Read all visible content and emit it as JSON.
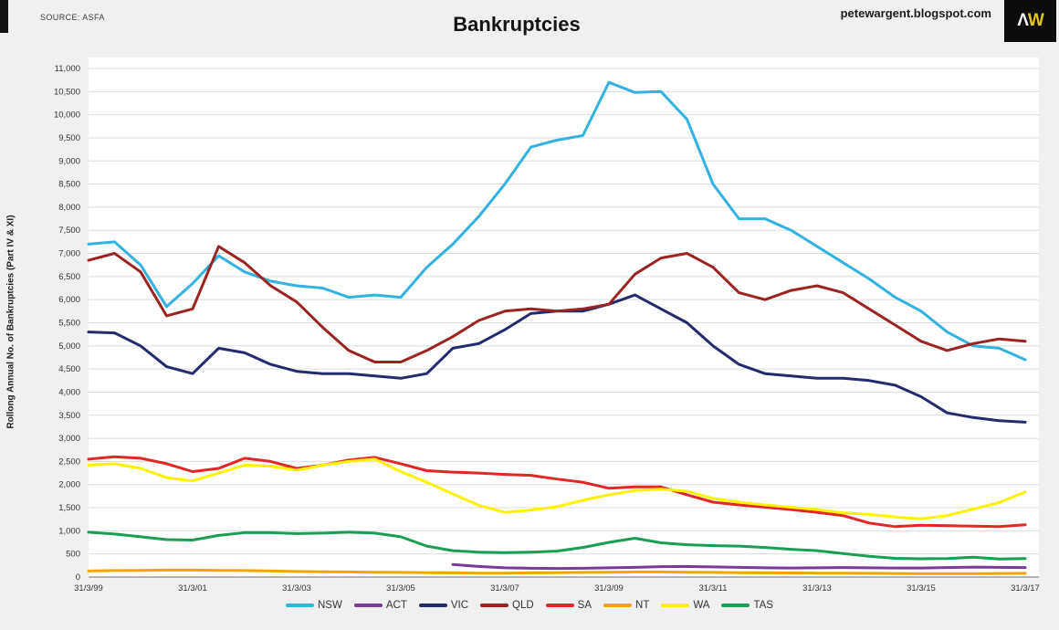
{
  "header": {
    "source": "SOURCE: ASFA",
    "title": "Bankruptcies",
    "site": "petewargent.blogspot.com",
    "logo": {
      "part1": "Λ",
      "part2": "W"
    }
  },
  "y_axis": {
    "label": "Rollong Annual No. of Bankruptcies (Part IV & XI)",
    "ticks": [
      "0",
      "500",
      "1,000",
      "1,500",
      "2,000",
      "2,500",
      "3,000",
      "3,500",
      "4,000",
      "4,500",
      "5,000",
      "5,500",
      "6,000",
      "6,500",
      "7,000",
      "7,500",
      "8,000",
      "8,500",
      "9,000",
      "9,500",
      "10,000",
      "10,500",
      "11,000"
    ]
  },
  "x_axis": {
    "ticks": [
      {
        "label": "31/3/99",
        "year": 1999.25
      },
      {
        "label": "31/3/01",
        "year": 2001.25
      },
      {
        "label": "31/3/03",
        "year": 2003.25
      },
      {
        "label": "31/3/05",
        "year": 2005.25
      },
      {
        "label": "31/3/07",
        "year": 2007.25
      },
      {
        "label": "31/3/09",
        "year": 2009.25
      },
      {
        "label": "31/3/11",
        "year": 2011.25
      },
      {
        "label": "31/3/13",
        "year": 2013.25
      },
      {
        "label": "31/3/15",
        "year": 2015.25
      },
      {
        "label": "31/3/17",
        "year": 2017.25
      }
    ]
  },
  "legend": [
    {
      "label": "NSW",
      "color": "#33b1e1"
    },
    {
      "label": "ACT",
      "color": "#7a3b9b"
    },
    {
      "label": "VIC",
      "color": "#232a6d"
    },
    {
      "label": "QLD",
      "color": "#9b2423"
    },
    {
      "label": "SA",
      "color": "#e32726"
    },
    {
      "label": "NT",
      "color": "#f0a500"
    },
    {
      "label": "WA",
      "color": "#fff200"
    },
    {
      "label": "TAS",
      "color": "#1a9e55"
    }
  ],
  "chart_data": {
    "type": "line",
    "title": "Bankruptcies",
    "ylabel": "Rollong Annual No. of Bankruptcies (Part IV & XI)",
    "xlabel": "",
    "ylim": [
      0,
      11000
    ],
    "y_tick_step": 500,
    "grid": "horizontal",
    "legend_position": "bottom",
    "x_start": 1999.25,
    "x_step": 0.5,
    "x_tick_labels": [
      "31/3/99",
      "31/3/01",
      "31/3/03",
      "31/3/05",
      "31/3/07",
      "31/3/09",
      "31/3/11",
      "31/3/13",
      "31/3/15",
      "31/3/17"
    ],
    "series": [
      {
        "name": "NSW",
        "color": "#33b1e1",
        "values": [
          7200,
          7250,
          6750,
          5850,
          6350,
          6950,
          6600,
          6400,
          6300,
          6250,
          6050,
          6100,
          6050,
          6700,
          7200,
          7800,
          8500,
          9300,
          9450,
          9550,
          10700,
          10480,
          10500,
          9900,
          8500,
          7750,
          7750,
          7500,
          7150,
          6800,
          6450,
          6050,
          5750,
          5300,
          5000,
          4950,
          4700
        ]
      },
      {
        "name": "ACT",
        "color": "#7a3b9b",
        "values": [
          null,
          null,
          null,
          null,
          null,
          null,
          null,
          null,
          null,
          null,
          null,
          null,
          null,
          null,
          270,
          230,
          200,
          190,
          185,
          190,
          200,
          210,
          225,
          230,
          220,
          210,
          200,
          195,
          200,
          205,
          200,
          195,
          195,
          205,
          215,
          210,
          205
        ]
      },
      {
        "name": "VIC",
        "color": "#232a6d",
        "values": [
          5300,
          5280,
          5000,
          4550,
          4400,
          4950,
          4850,
          4600,
          4450,
          4400,
          4400,
          4350,
          4300,
          4400,
          4950,
          5050,
          5350,
          5700,
          5750,
          5750,
          5900,
          6100,
          5800,
          5500,
          5000,
          4600,
          4400,
          4350,
          4300,
          4300,
          4250,
          4150,
          3900,
          3550,
          3450,
          3380,
          3350
        ]
      },
      {
        "name": "QLD",
        "color": "#9b2423",
        "values": [
          6850,
          7000,
          6600,
          5650,
          5800,
          7150,
          6800,
          6300,
          5950,
          5400,
          4900,
          4650,
          4650,
          4900,
          5200,
          5550,
          5750,
          5800,
          5750,
          5800,
          5900,
          6550,
          6900,
          7000,
          6700,
          6150,
          6000,
          6200,
          6300,
          6150,
          5800,
          5450,
          5100,
          4900,
          5050,
          5150,
          5100
        ]
      },
      {
        "name": "SA",
        "color": "#e32726",
        "values": [
          2550,
          2600,
          2570,
          2450,
          2280,
          2350,
          2570,
          2500,
          2350,
          2420,
          2530,
          2590,
          2450,
          2300,
          2270,
          2250,
          2220,
          2200,
          2120,
          2050,
          1920,
          1950,
          1950,
          1780,
          1620,
          1560,
          1510,
          1460,
          1400,
          1330,
          1170,
          1090,
          1120,
          1110,
          1100,
          1090,
          1130
        ]
      },
      {
        "name": "NT",
        "color": "#f0a500",
        "values": [
          130,
          140,
          145,
          150,
          150,
          145,
          140,
          130,
          120,
          115,
          110,
          105,
          100,
          95,
          90,
          85,
          85,
          90,
          95,
          100,
          105,
          110,
          110,
          105,
          100,
          95,
          90,
          88,
          85,
          82,
          80,
          78,
          75,
          75,
          75,
          78,
          80
        ]
      },
      {
        "name": "WA",
        "color": "#fff200",
        "values": [
          2420,
          2450,
          2350,
          2150,
          2080,
          2250,
          2420,
          2400,
          2310,
          2420,
          2500,
          2550,
          2280,
          2050,
          1800,
          1550,
          1400,
          1450,
          1520,
          1660,
          1780,
          1870,
          1900,
          1855,
          1700,
          1620,
          1560,
          1510,
          1460,
          1390,
          1355,
          1300,
          1260,
          1330,
          1470,
          1610,
          1840
        ]
      },
      {
        "name": "TAS",
        "color": "#1a9e55",
        "values": [
          970,
          930,
          870,
          810,
          800,
          900,
          960,
          960,
          940,
          950,
          970,
          950,
          870,
          670,
          570,
          540,
          530,
          540,
          560,
          640,
          750,
          840,
          740,
          700,
          680,
          670,
          640,
          600,
          570,
          510,
          450,
          405,
          395,
          400,
          430,
          390,
          400
        ]
      }
    ]
  }
}
